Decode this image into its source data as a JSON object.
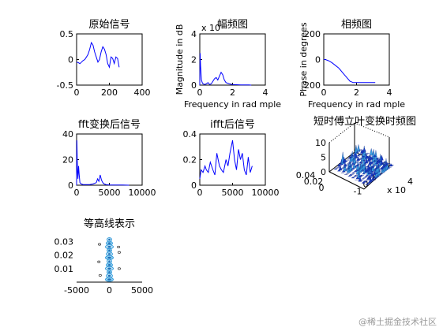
{
  "chart_data": [
    {
      "type": "line",
      "title": "原始信号",
      "xlim": [
        0,
        400
      ],
      "ylim": [
        -0.5,
        0.5
      ],
      "xticks": [
        "0",
        "200",
        "400"
      ],
      "yticks": [
        "-0.5",
        "0",
        "0.5"
      ],
      "color": "#0000ff",
      "series": [
        {
          "x": [
            0,
            10,
            20,
            30,
            40,
            50,
            60,
            70,
            80,
            90,
            100,
            110,
            120,
            130,
            140,
            150,
            160,
            170,
            180,
            190,
            200,
            210,
            220,
            230,
            240,
            250,
            260
          ],
          "y": [
            -0.05,
            -0.06,
            -0.08,
            -0.05,
            -0.02,
            0.0,
            0.05,
            0.1,
            0.2,
            0.33,
            0.28,
            0.15,
            0.05,
            -0.05,
            0.0,
            0.15,
            0.25,
            0.2,
            0.1,
            -0.08,
            -0.15,
            0.05,
            0.02,
            -0.08,
            0.05,
            0.02,
            -0.15
          ]
        }
      ]
    },
    {
      "type": "line",
      "title": "幅频图",
      "xlabel": "Frequency in rad mple",
      "ylabel": "Magnitude in dB",
      "multiplier": "x 10",
      "xlim": [
        0,
        4
      ],
      "ylim": [
        0,
        4
      ],
      "xticks": [
        "0",
        "2",
        "4"
      ],
      "yticks": [
        "0",
        "2",
        "4"
      ],
      "color": "#0000ff",
      "series": [
        {
          "x": [
            0,
            0.02,
            0.05,
            0.08,
            0.1,
            0.15,
            0.2,
            0.3,
            0.4,
            0.5,
            0.6,
            0.7,
            0.8,
            0.9,
            1.0,
            1.1,
            1.2,
            1.3,
            1.4,
            1.5,
            1.6,
            1.8,
            2.0,
            2.5,
            3.0,
            3.14
          ],
          "y": [
            0,
            2.5,
            1.5,
            0.8,
            0.4,
            0.2,
            0.1,
            0.05,
            0.1,
            0.2,
            0.05,
            0.1,
            0.3,
            0.5,
            0.6,
            0.4,
            0.7,
            1.0,
            0.8,
            0.4,
            0.2,
            0.1,
            0.05,
            0.02,
            0.01,
            0
          ]
        }
      ]
    },
    {
      "type": "line",
      "title": "相频图",
      "xlabel": "Frequency in rad mple",
      "ylabel": "Phase in degrees",
      "xlim": [
        0,
        4
      ],
      "ylim": [
        -200,
        200
      ],
      "xticks": [
        "0",
        "2",
        "4"
      ],
      "yticks": [
        "-200",
        "0",
        "200"
      ],
      "color": "#0000ff",
      "series": [
        {
          "x": [
            0,
            0.1,
            0.3,
            0.5,
            0.7,
            0.9,
            1.0,
            1.2,
            1.4,
            1.6,
            1.8,
            2.0,
            2.5,
            3.0,
            3.14
          ],
          "y": [
            0,
            0,
            -10,
            -25,
            -45,
            -65,
            -80,
            -110,
            -140,
            -170,
            -180,
            -180,
            -180,
            -180,
            -180
          ]
        }
      ]
    },
    {
      "type": "line",
      "title": "fft变换后信号",
      "xlim": [
        0,
        10000
      ],
      "ylim": [
        0,
        40
      ],
      "xticks": [
        "0",
        "5000",
        "10000"
      ],
      "yticks": [
        "0",
        "20",
        "40"
      ],
      "color": "#0000ff",
      "series": [
        {
          "x": [
            0,
            50,
            100,
            150,
            200,
            300,
            400,
            500,
            700,
            1000,
            1500,
            2000,
            2500,
            3000,
            3200,
            3400,
            3600,
            3800,
            4000,
            4200,
            4500,
            5000,
            6000,
            7000,
            8000
          ],
          "y": [
            0,
            35,
            20,
            10,
            5,
            15,
            8,
            2,
            1,
            0.5,
            0.5,
            0.5,
            1,
            2,
            5,
            3,
            8,
            4,
            2,
            1,
            0.5,
            0.2,
            0.1,
            0.1,
            0
          ]
        }
      ]
    },
    {
      "type": "line",
      "title": "ifft后信号",
      "xlim": [
        0,
        10000
      ],
      "ylim": [
        0,
        0.4
      ],
      "xticks": [
        "0",
        "5000",
        "10000"
      ],
      "yticks": [
        "0",
        "0.2",
        "0.4"
      ],
      "color": "#0000ff",
      "series": [
        {
          "x": [
            0,
            200,
            500,
            800,
            1000,
            1300,
            1600,
            2000,
            2300,
            2600,
            3000,
            3300,
            3600,
            4000,
            4300,
            4600,
            5000,
            5300,
            5600,
            5900,
            6200,
            6500,
            6800,
            7100,
            7400,
            7700,
            8000
          ],
          "y": [
            0.05,
            0.12,
            0.1,
            0.15,
            0.12,
            0.1,
            0.18,
            0.12,
            0.08,
            0.25,
            0.15,
            0.12,
            0.1,
            0.2,
            0.15,
            0.25,
            0.35,
            0.2,
            0.12,
            0.28,
            0.2,
            0.25,
            0.12,
            0.08,
            0.22,
            0.1,
            0.15
          ]
        }
      ]
    },
    {
      "type": "surface",
      "title": "短时傅立叶变换时频图",
      "zticks": [
        "0",
        "5",
        "10"
      ],
      "yticks": [
        "0.04",
        "0.02",
        "0"
      ],
      "xticks": [
        "-1",
        "0",
        "1"
      ],
      "multiplier": "x 10",
      "exponent": "4",
      "color": "#0000ff"
    },
    {
      "type": "contour",
      "title": "等高线表示",
      "xlim": [
        -5000,
        5000
      ],
      "ylim": [
        0,
        0.035
      ],
      "xticks": [
        "-5000",
        "0",
        "5000"
      ],
      "yticks": [
        "0.01",
        "0.02",
        "0.03"
      ],
      "color": "#1f8fd6"
    }
  ],
  "watermark": "@稀土掘金技术社区"
}
